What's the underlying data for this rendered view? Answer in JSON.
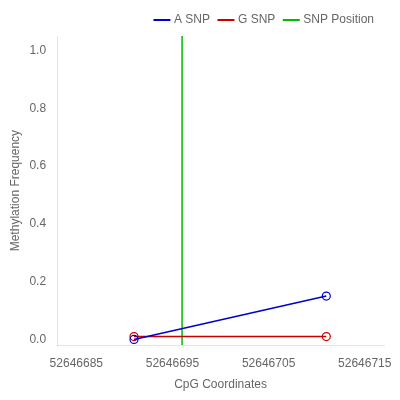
{
  "chart_data": {
    "type": "line",
    "xlabel": "CpG Coordinates",
    "ylabel": "Methylation Frequency",
    "x": [
      52646691,
      52646711
    ],
    "series": [
      {
        "name": "A SNP",
        "color": "#0000cc",
        "values": [
          0.0,
          0.15
        ],
        "marker": "o"
      },
      {
        "name": "G SNP",
        "color": "#cc0000",
        "values": [
          0.01,
          0.01
        ],
        "marker": "o"
      },
      {
        "name": "SNP Position",
        "color": "#00bb00",
        "type": "vline",
        "x": 52646696
      }
    ],
    "xlim": [
      52646683,
      52646717
    ],
    "xticks": [
      52646685,
      52646695,
      52646705,
      52646715
    ],
    "ylim": [
      -0.02,
      1.05
    ],
    "yticks": [
      {
        "value": 0.0,
        "label": "0.0"
      },
      0.2,
      0.4,
      0.6,
      0.8,
      {
        "value": 1.0,
        "label": "1.0"
      }
    ],
    "grid": false,
    "legend": "upper right"
  }
}
